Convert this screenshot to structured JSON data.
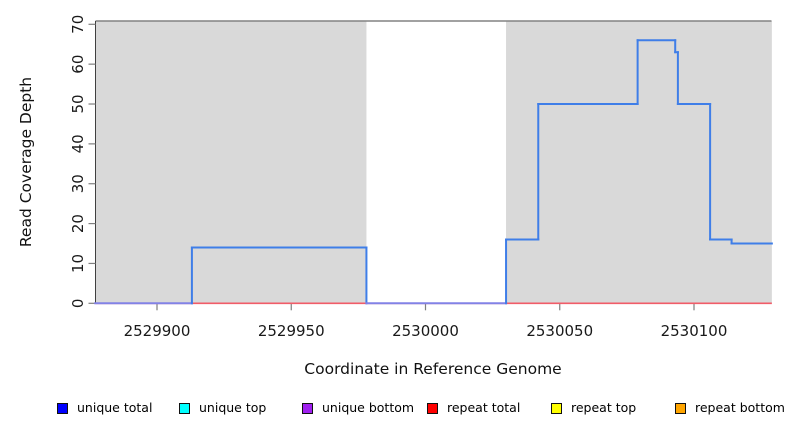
{
  "chart_data": {
    "type": "line",
    "style": "step-after",
    "title": "",
    "x_label": "Coordinate in Reference Genome",
    "y_label": "Read Coverage Depth",
    "x_ticks": [
      2529900,
      2529950,
      2530000,
      2530050,
      2530100
    ],
    "y_ticks": [
      0,
      10,
      20,
      30,
      40,
      50,
      60,
      70
    ],
    "x_range": [
      2529877,
      2530129
    ],
    "y_range": [
      0,
      70.8
    ],
    "grid": false,
    "shade_color": "#D9D9D9",
    "plot_top_border_color": "#828282",
    "axis_line_color": "#404040",
    "tick_color": "#7F7F7F",
    "shaded_repeat_regions": [
      [
        2529877,
        2529978
      ],
      [
        2530030,
        2530129
      ]
    ],
    "series": [
      {
        "name": "unique total",
        "line_color": "#3F7EE8",
        "zero_overlap_color": "#8282E6",
        "steps": [
          [
            2529877,
            0
          ],
          [
            2529913,
            14
          ],
          [
            2529978,
            0
          ],
          [
            2530030,
            16
          ],
          [
            2530042,
            50
          ],
          [
            2530079,
            66
          ],
          [
            2530093,
            63
          ],
          [
            2530094,
            50
          ],
          [
            2530106,
            16
          ],
          [
            2530114,
            15
          ]
        ],
        "end_x": 2530129
      },
      {
        "name": "repeat total",
        "line_color": "#F15C68",
        "steps": [
          [
            2529877,
            0
          ]
        ],
        "end_x": 2530129
      }
    ]
  },
  "legend": {
    "items": [
      {
        "label": "unique total",
        "color": "#0000FF"
      },
      {
        "label": "unique top",
        "color": "#00FFFF"
      },
      {
        "label": "unique bottom",
        "color": "#A020F0"
      },
      {
        "label": "repeat total",
        "color": "#FF0000"
      },
      {
        "label": "repeat top",
        "color": "#FFFF00"
      },
      {
        "label": "repeat bottom",
        "color": "#FFA500"
      }
    ]
  }
}
